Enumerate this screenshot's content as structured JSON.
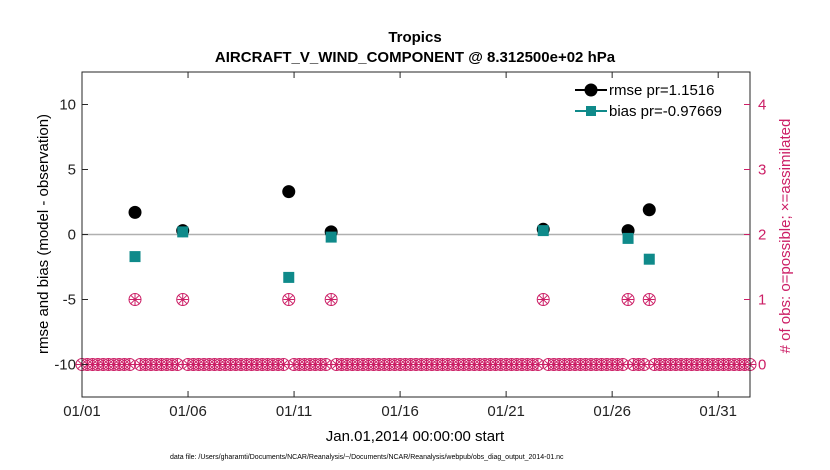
{
  "chart_data": {
    "type": "scatter",
    "title": "Tropics",
    "subtitle": "AIRCRAFT_V_WIND_COMPONENT @ 8.312500e+02 hPa",
    "xlabel": "Jan.01,2014 00:00:00 start",
    "ylabel": "rmse and bias (model - observation)",
    "ylabel_right": "# of obs: o=possible; ×=assimilated",
    "xlim": [
      0,
      31.5
    ],
    "ylim": [
      -12.5,
      12.5
    ],
    "ylim_right": [
      -0.5,
      4.5
    ],
    "x_ticks": [
      {
        "x": 0,
        "label": "01/01"
      },
      {
        "x": 5,
        "label": "01/06"
      },
      {
        "x": 10,
        "label": "01/11"
      },
      {
        "x": 15,
        "label": "01/16"
      },
      {
        "x": 20,
        "label": "01/21"
      },
      {
        "x": 25,
        "label": "01/26"
      },
      {
        "x": 30,
        "label": "01/31"
      }
    ],
    "y_ticks": [
      {
        "y": 10,
        "label": "10"
      },
      {
        "y": 5,
        "label": "5"
      },
      {
        "y": 0,
        "label": "0"
      },
      {
        "y": -5,
        "label": "-5"
      },
      {
        "y": -10,
        "label": "-10"
      }
    ],
    "y_ticks_right": [
      {
        "y": 4,
        "label": "4"
      },
      {
        "y": 3,
        "label": "3"
      },
      {
        "y": 2,
        "label": "2"
      },
      {
        "y": 1,
        "label": "1"
      },
      {
        "y": 0,
        "label": "0"
      }
    ],
    "reference_line": 0,
    "series": [
      {
        "name": "rmse",
        "legend": "rmse pr=1.1516",
        "color": "#000000",
        "marker": "circle",
        "points": [
          [
            2.5,
            1.7
          ],
          [
            4.75,
            0.3
          ],
          [
            9.75,
            3.3
          ],
          [
            11.75,
            0.2
          ],
          [
            21.75,
            0.4
          ],
          [
            25.75,
            0.3
          ],
          [
            26.75,
            1.9
          ]
        ]
      },
      {
        "name": "bias",
        "legend": "bias pr=-0.97669",
        "color": "#0f8a8a",
        "marker": "square",
        "points": [
          [
            2.5,
            -1.7
          ],
          [
            4.75,
            0.2
          ],
          [
            9.75,
            -3.3
          ],
          [
            11.75,
            -0.2
          ],
          [
            21.75,
            0.3
          ],
          [
            25.75,
            -0.3
          ],
          [
            26.75,
            -1.9
          ]
        ]
      },
      {
        "name": "obs_count",
        "color": "#cc1f66",
        "marker": "circle-star",
        "axis": "right",
        "x_start": 0,
        "x_end": 31.5,
        "x_step": 0.25,
        "baseline": 0,
        "nonzero": [
          [
            2.5,
            1
          ],
          [
            4.75,
            1
          ],
          [
            9.75,
            1
          ],
          [
            11.75,
            1
          ],
          [
            21.75,
            1
          ],
          [
            25.75,
            1
          ],
          [
            26.75,
            1
          ]
        ]
      }
    ],
    "footnote": "data file: /Users/gharamti/Documents/NCAR/Reanalysis/~/Documents/NCAR/Reanalysis/webpub/obs_diag_output_2014-01.nc"
  },
  "colors": {
    "rmse": "#000000",
    "bias": "#0f8a8a",
    "obs": "#cc1f66",
    "zero_line": "#b0b0b0"
  }
}
